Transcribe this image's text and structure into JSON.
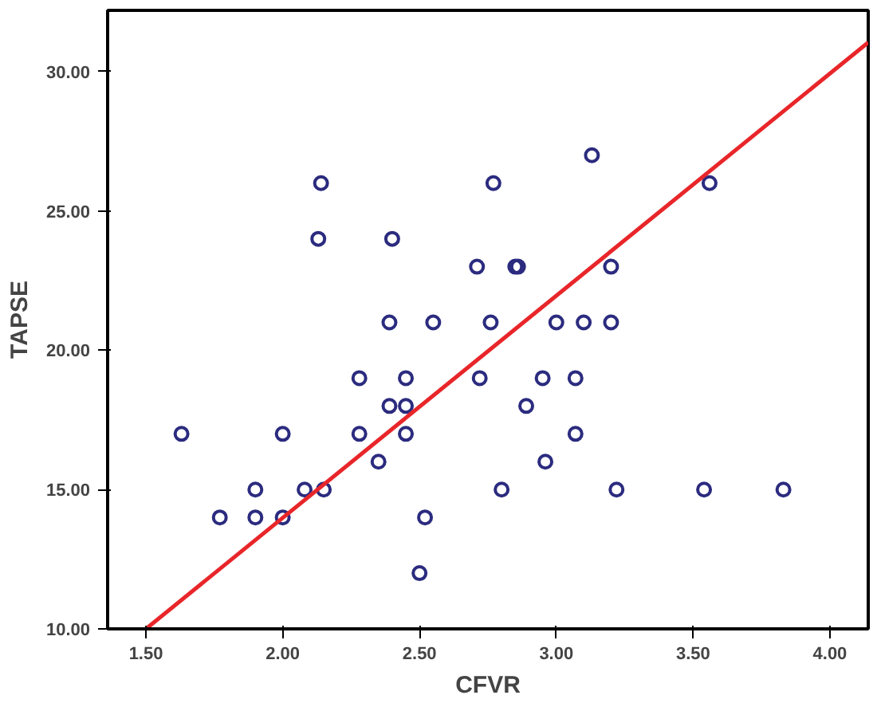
{
  "chart_data": {
    "type": "scatter",
    "xlabel": "CFVR",
    "ylabel": "TAPSE",
    "xlim": [
      1.36,
      4.14
    ],
    "ylim": [
      10,
      32.2
    ],
    "xticks": [
      {
        "value": 1.5,
        "label": "1.50"
      },
      {
        "value": 2,
        "label": "2.00"
      },
      {
        "value": 2.5,
        "label": "2.50"
      },
      {
        "value": 3,
        "label": "3.00"
      },
      {
        "value": 3.5,
        "label": "3.50"
      },
      {
        "value": 4,
        "label": "4.00"
      }
    ],
    "yticks": [
      {
        "value": 10,
        "label": "10.00"
      },
      {
        "value": 15,
        "label": "15.00"
      },
      {
        "value": 20,
        "label": "20.00"
      },
      {
        "value": 25,
        "label": "25.00"
      },
      {
        "value": 30,
        "label": "30.00"
      }
    ],
    "grid": false,
    "series": [
      {
        "color": "#2b2b7f",
        "marker": "circle",
        "x": [
          2.14,
          2.13,
          2.4,
          2.39,
          2.55,
          3.13,
          2.77,
          3.56,
          2.71,
          2.85,
          2.86,
          3.2,
          2.76,
          3.0,
          3.1,
          3.2,
          2.28,
          2.45,
          2.72,
          2.95,
          3.07,
          2.89,
          2.39,
          2.45,
          1.63,
          2.0,
          2.28,
          2.45,
          3.07,
          2.35,
          2.96,
          1.9,
          2.08,
          2.15,
          2.8,
          3.22,
          3.54,
          3.83,
          1.77,
          1.9,
          2.0,
          2.52,
          2.5
        ],
        "values": [
          26,
          24,
          24,
          21,
          21,
          27,
          26,
          26,
          23,
          23,
          23,
          23,
          21,
          21,
          21,
          21,
          19,
          19,
          19,
          19,
          19,
          18,
          18,
          18,
          17,
          17,
          17,
          17,
          17,
          16,
          16,
          15,
          15,
          15,
          15,
          15,
          15,
          15,
          14,
          14,
          14,
          14,
          12
        ]
      },
      {
        "type": "line",
        "marker": "none",
        "color": "#e8262a",
        "x": [
          1.5,
          4.14
        ],
        "values": [
          10,
          31.05
        ]
      }
    ]
  }
}
